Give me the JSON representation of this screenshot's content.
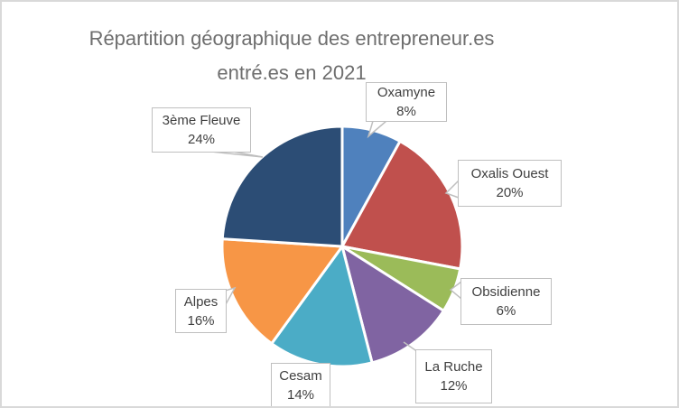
{
  "frame": {
    "background": "#ffffff",
    "border_color": "#d9d9d9"
  },
  "title": {
    "line1": "Répartition géographique des entrepreneur.es",
    "line2": "entré.es en 2021",
    "color": "#6e6e6e"
  },
  "callout_style": {
    "border_color": "#bfbfbf",
    "text_color": "#404040",
    "fill": "#ffffff"
  },
  "chart_data": {
    "type": "pie",
    "title": "Répartition géographique des entrepreneur.es entré.es en 2021",
    "unit": "percent",
    "start_angle_deg": 0,
    "direction": "clockwise",
    "legend": "none",
    "separator_color": "#ffffff",
    "categories": [
      "Oxamyne",
      "Oxalis Ouest",
      "Obsidienne",
      "La Ruche",
      "Cesam",
      "Alpes",
      "3ème Fleuve"
    ],
    "values": [
      8,
      20,
      6,
      12,
      14,
      16,
      24
    ],
    "slices": [
      {
        "id": "oxamyne",
        "name": "Oxamyne",
        "value": 8,
        "pct_label": "8%",
        "color": "#4F81BD"
      },
      {
        "id": "oxalis",
        "name": "Oxalis Ouest",
        "value": 20,
        "pct_label": "20%",
        "color": "#C0504D"
      },
      {
        "id": "obsidienne",
        "name": "Obsidienne",
        "value": 6,
        "pct_label": "6%",
        "color": "#9BBB59"
      },
      {
        "id": "laruche",
        "name": "La Ruche",
        "value": 12,
        "pct_label": "12%",
        "color": "#8064A2"
      },
      {
        "id": "cesam",
        "name": "Cesam",
        "value": 14,
        "pct_label": "14%",
        "color": "#4BACC6"
      },
      {
        "id": "alpes",
        "name": "Alpes",
        "value": 16,
        "pct_label": "16%",
        "color": "#F79646"
      },
      {
        "id": "fleuve",
        "name": "3ème Fleuve",
        "value": 24,
        "pct_label": "24%",
        "color": "#2C4D75"
      }
    ]
  }
}
